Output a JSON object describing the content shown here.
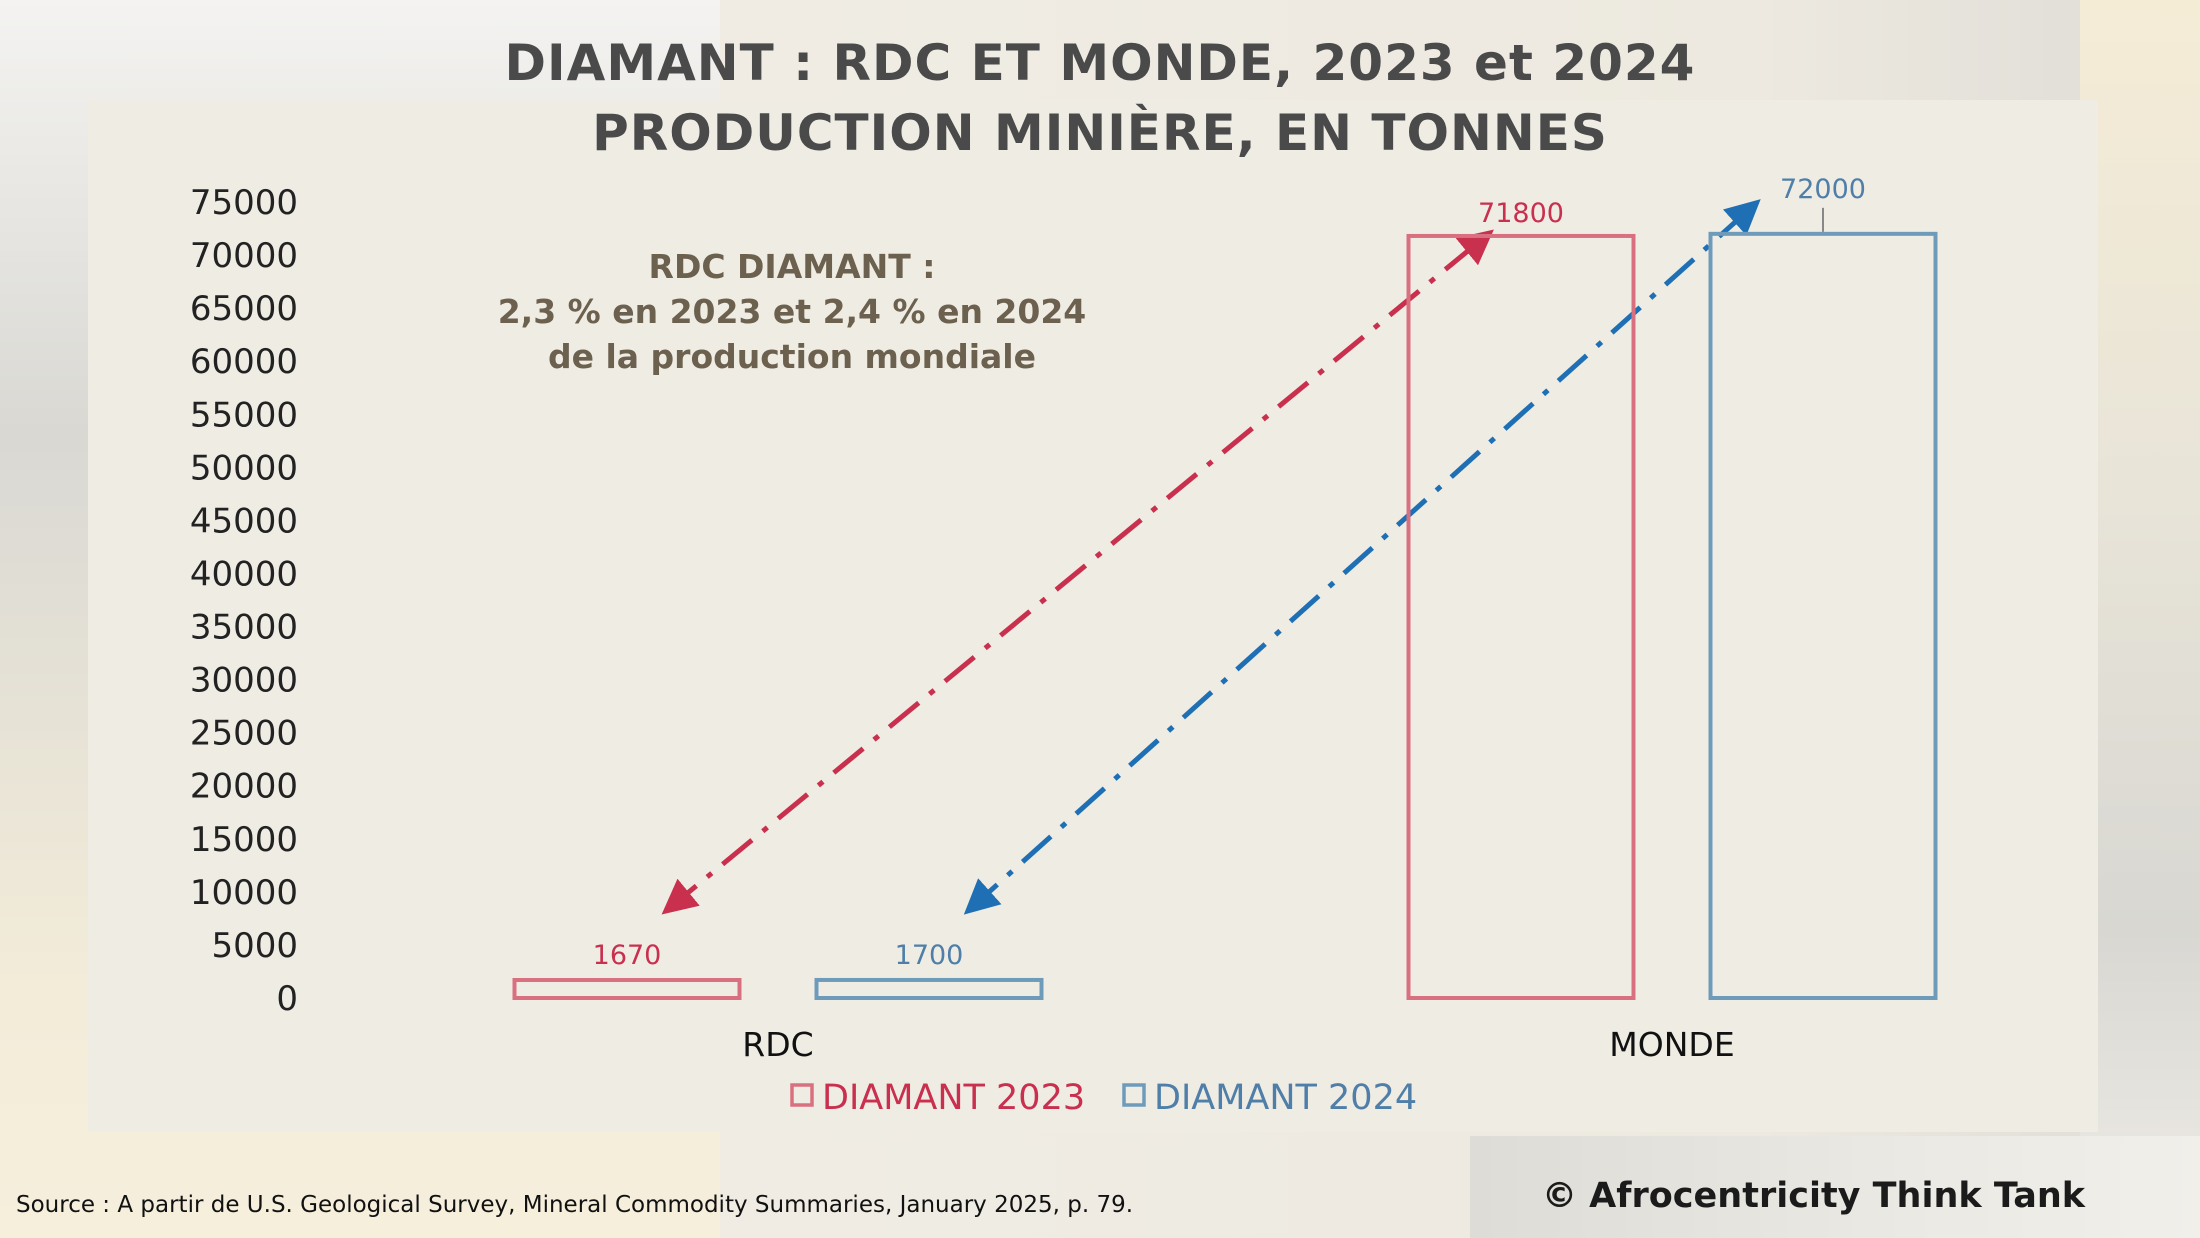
{
  "title_line1": "DIAMANT : RDC ET MONDE, 2023 et 2024",
  "title_line2": "PRODUCTION MINIÈRE, EN TONNES",
  "source": "Source : A partir de U.S. Geological Survey, Mineral Commodity Summaries, January 2025, p. 79.",
  "copyright": "© Afrocentricity Think Tank",
  "chart_data": {
    "type": "bar",
    "categories": [
      "RDC",
      "MONDE"
    ],
    "series": [
      {
        "name": "DIAMANT 2023",
        "values": [
          1670,
          71800
        ],
        "color": "#d9707f"
      },
      {
        "name": "DIAMANT 2024",
        "values": [
          1700,
          72000
        ],
        "color": "#6f9bbb"
      }
    ],
    "data_labels": [
      [
        "1670",
        "71800"
      ],
      [
        "1700",
        "72000"
      ]
    ],
    "label_colors": [
      "#c8304e",
      "#4f7fa8"
    ],
    "ylim": [
      0,
      75000
    ],
    "yticks": [
      0,
      5000,
      10000,
      15000,
      20000,
      25000,
      30000,
      35000,
      40000,
      45000,
      50000,
      55000,
      60000,
      65000,
      70000,
      75000
    ],
    "ytick_labels": [
      "0",
      "5000",
      "10000",
      "15000",
      "20000",
      "25000",
      "30000",
      "35000",
      "40000",
      "45000",
      "50000",
      "55000",
      "60000",
      "65000",
      "70000",
      "75000"
    ],
    "legend_position": "bottom",
    "grid": false,
    "annotation": [
      "RDC DIAMANT :",
      "2,3 % en 2023 et 2,4 % en 2024",
      "de la production mondiale"
    ],
    "arrow_colors": [
      "#c8304e",
      "#1f6fb5"
    ]
  }
}
